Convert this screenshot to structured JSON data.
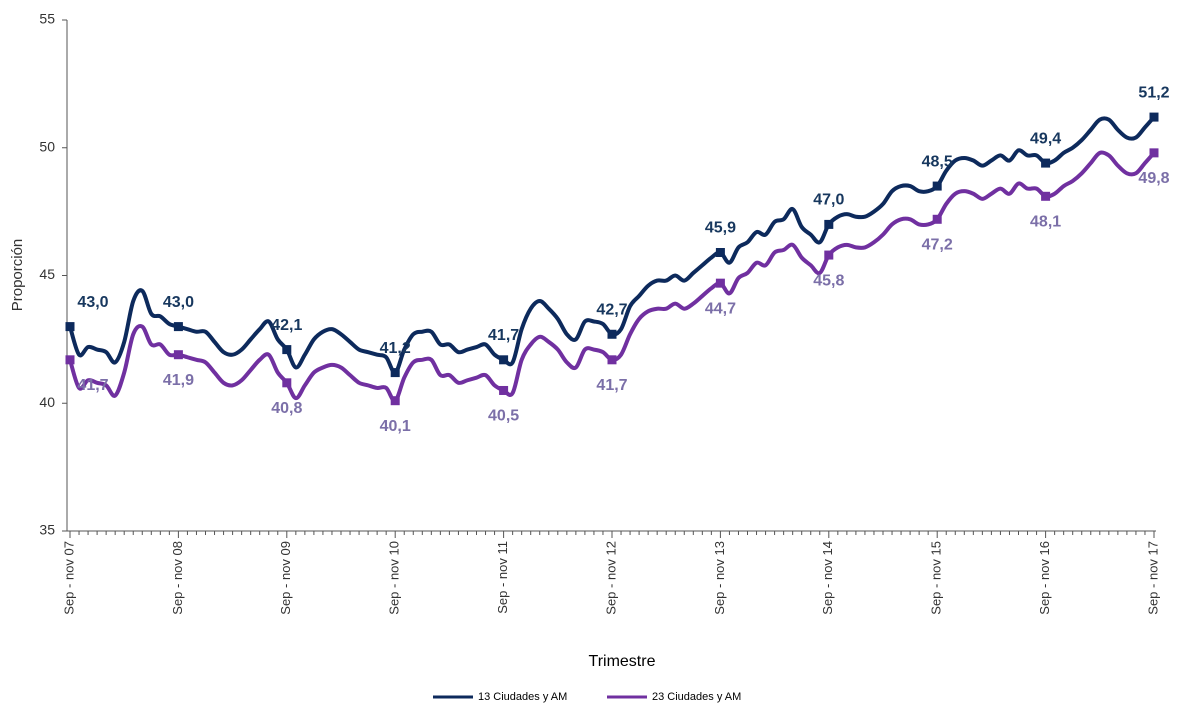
{
  "chart_data": {
    "type": "line",
    "x_label": "Trimestre",
    "y_label": "Proporción",
    "ylim": [
      35,
      55
    ],
    "yticks": [
      35,
      40,
      45,
      50,
      55
    ],
    "categories": [
      "Sep - nov 07",
      null,
      null,
      null,
      null,
      null,
      null,
      null,
      null,
      null,
      null,
      null,
      "Sep - nov 08",
      null,
      null,
      null,
      null,
      null,
      null,
      null,
      null,
      null,
      null,
      null,
      "Sep - nov 09",
      null,
      null,
      null,
      null,
      null,
      null,
      null,
      null,
      null,
      null,
      null,
      "Sep - nov 10",
      null,
      null,
      null,
      null,
      null,
      null,
      null,
      null,
      null,
      null,
      null,
      "Sep - nov 11",
      null,
      null,
      null,
      null,
      null,
      null,
      null,
      null,
      null,
      null,
      null,
      "Sep - nov 12",
      null,
      null,
      null,
      null,
      null,
      null,
      null,
      null,
      null,
      null,
      null,
      "Sep - nov 13",
      null,
      null,
      null,
      null,
      null,
      null,
      null,
      null,
      null,
      null,
      null,
      "Sep - nov 14",
      null,
      null,
      null,
      null,
      null,
      null,
      null,
      null,
      null,
      null,
      null,
      "Sep - nov 15",
      null,
      null,
      null,
      null,
      null,
      null,
      null,
      null,
      null,
      null,
      null,
      "Sep - nov 16",
      null,
      null,
      null,
      null,
      null,
      null,
      null,
      null,
      null,
      null,
      null,
      "Sep - nov 17"
    ],
    "series": [
      {
        "name": "13 Ciudades y AM",
        "color": "#0d2a5c",
        "label_color": "#17375e",
        "values": [
          43.0,
          41.9,
          42.2,
          42.1,
          42.0,
          41.6,
          42.4,
          44.0,
          44.4,
          43.5,
          43.4,
          43.1,
          43.0,
          42.9,
          42.8,
          42.8,
          42.4,
          42.0,
          41.9,
          42.1,
          42.5,
          42.9,
          43.2,
          42.5,
          42.1,
          41.4,
          41.9,
          42.5,
          42.8,
          42.9,
          42.7,
          42.4,
          42.1,
          42.0,
          41.9,
          41.8,
          41.2,
          42.1,
          42.7,
          42.8,
          42.8,
          42.3,
          42.3,
          42.0,
          42.1,
          42.2,
          42.3,
          41.9,
          41.7,
          41.6,
          42.9,
          43.7,
          44.0,
          43.7,
          43.3,
          42.7,
          42.5,
          43.2,
          43.2,
          43.1,
          42.7,
          42.9,
          43.8,
          44.2,
          44.6,
          44.8,
          44.8,
          45.0,
          44.8,
          45.1,
          45.4,
          45.7,
          45.9,
          45.5,
          46.1,
          46.3,
          46.7,
          46.6,
          47.1,
          47.2,
          47.6,
          46.9,
          46.6,
          46.3,
          47.0,
          47.3,
          47.4,
          47.3,
          47.3,
          47.5,
          47.8,
          48.3,
          48.5,
          48.5,
          48.3,
          48.3,
          48.5,
          49.1,
          49.5,
          49.6,
          49.5,
          49.3,
          49.5,
          49.7,
          49.5,
          49.9,
          49.7,
          49.7,
          49.4,
          49.5,
          49.8,
          50.0,
          50.3,
          50.7,
          51.1,
          51.1,
          50.7,
          50.4,
          50.4,
          50.8,
          51.2
        ],
        "value_labels": [
          "43,0",
          null,
          null,
          null,
          null,
          null,
          null,
          null,
          null,
          null,
          null,
          null,
          "43,0",
          null,
          null,
          null,
          null,
          null,
          null,
          null,
          null,
          null,
          null,
          null,
          "42,1",
          null,
          null,
          null,
          null,
          null,
          null,
          null,
          null,
          null,
          null,
          null,
          "41,2",
          null,
          null,
          null,
          null,
          null,
          null,
          null,
          null,
          null,
          null,
          null,
          "41,7",
          null,
          null,
          null,
          null,
          null,
          null,
          null,
          null,
          null,
          null,
          null,
          "42,7",
          null,
          null,
          null,
          null,
          null,
          null,
          null,
          null,
          null,
          null,
          null,
          "45,9",
          null,
          null,
          null,
          null,
          null,
          null,
          null,
          null,
          null,
          null,
          null,
          "47,0",
          null,
          null,
          null,
          null,
          null,
          null,
          null,
          null,
          null,
          null,
          null,
          "48,5",
          null,
          null,
          null,
          null,
          null,
          null,
          null,
          null,
          null,
          null,
          null,
          "49,4",
          null,
          null,
          null,
          null,
          null,
          null,
          null,
          null,
          null,
          null,
          null,
          "51,2"
        ]
      },
      {
        "name": "23 Ciudades y AM",
        "color": "#7030a0",
        "label_color": "#7b6fa8",
        "values": [
          41.7,
          40.6,
          40.9,
          40.8,
          40.7,
          40.3,
          41.2,
          42.7,
          43.0,
          42.3,
          42.3,
          41.9,
          41.9,
          41.8,
          41.7,
          41.6,
          41.2,
          40.8,
          40.7,
          40.9,
          41.3,
          41.7,
          41.9,
          41.2,
          40.8,
          40.2,
          40.7,
          41.2,
          41.4,
          41.5,
          41.4,
          41.1,
          40.8,
          40.7,
          40.6,
          40.6,
          40.1,
          41.0,
          41.6,
          41.7,
          41.7,
          41.1,
          41.1,
          40.8,
          40.9,
          41.0,
          41.1,
          40.7,
          40.5,
          40.4,
          41.7,
          42.3,
          42.6,
          42.4,
          42.1,
          41.6,
          41.4,
          42.1,
          42.1,
          42.0,
          41.7,
          41.9,
          42.7,
          43.3,
          43.6,
          43.7,
          43.7,
          43.9,
          43.7,
          43.9,
          44.2,
          44.5,
          44.7,
          44.3,
          44.9,
          45.1,
          45.5,
          45.4,
          45.9,
          46.0,
          46.2,
          45.7,
          45.4,
          45.1,
          45.8,
          46.1,
          46.2,
          46.1,
          46.1,
          46.3,
          46.6,
          47.0,
          47.2,
          47.2,
          47.0,
          47.0,
          47.2,
          47.8,
          48.2,
          48.3,
          48.2,
          48.0,
          48.2,
          48.4,
          48.2,
          48.6,
          48.4,
          48.4,
          48.1,
          48.2,
          48.5,
          48.7,
          49.0,
          49.4,
          49.8,
          49.7,
          49.3,
          49.0,
          49.0,
          49.4,
          49.8
        ],
        "value_labels": [
          "41,7",
          null,
          null,
          null,
          null,
          null,
          null,
          null,
          null,
          null,
          null,
          null,
          "41,9",
          null,
          null,
          null,
          null,
          null,
          null,
          null,
          null,
          null,
          null,
          null,
          "40,8",
          null,
          null,
          null,
          null,
          null,
          null,
          null,
          null,
          null,
          null,
          null,
          "40,1",
          null,
          null,
          null,
          null,
          null,
          null,
          null,
          null,
          null,
          null,
          null,
          "40,5",
          null,
          null,
          null,
          null,
          null,
          null,
          null,
          null,
          null,
          null,
          null,
          "41,7",
          null,
          null,
          null,
          null,
          null,
          null,
          null,
          null,
          null,
          null,
          null,
          "44,7",
          null,
          null,
          null,
          null,
          null,
          null,
          null,
          null,
          null,
          null,
          null,
          "45,8",
          null,
          null,
          null,
          null,
          null,
          null,
          null,
          null,
          null,
          null,
          null,
          "47,2",
          null,
          null,
          null,
          null,
          null,
          null,
          null,
          null,
          null,
          null,
          null,
          "48,1",
          null,
          null,
          null,
          null,
          null,
          null,
          null,
          null,
          null,
          null,
          null,
          "49,8"
        ]
      }
    ]
  }
}
